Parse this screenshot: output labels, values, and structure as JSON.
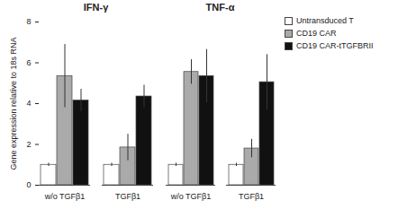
{
  "chart_data": [
    {
      "type": "bar",
      "title": "IFN-γ",
      "ylabel": "Gene expression relative to 18s RNA",
      "categories": [
        "w/o TGFβ1",
        "TGFβ1"
      ],
      "series": [
        {
          "name": "Untransduced T",
          "color": "#ffffff",
          "values": [
            1.0,
            1.0
          ],
          "errors": [
            0.08,
            0.08
          ]
        },
        {
          "name": "CD19 CAR",
          "color": "#aaaaaa",
          "values": [
            5.35,
            1.85
          ],
          "errors": [
            1.55,
            0.65
          ]
        },
        {
          "name": "CD19 CAR-tTGFBRII",
          "color": "#111111",
          "values": [
            4.15,
            4.35
          ],
          "errors": [
            0.55,
            0.55
          ]
        }
      ],
      "ylim": [
        0,
        8
      ],
      "yticks": [
        0,
        2,
        4,
        6,
        8
      ]
    },
    {
      "type": "bar",
      "title": "TNF-α",
      "categories": [
        "w/o TGFβ1",
        "TGFβ1"
      ],
      "series": [
        {
          "name": "Untransduced T",
          "color": "#ffffff",
          "values": [
            1.0,
            1.0
          ],
          "errors": [
            0.08,
            0.08
          ]
        },
        {
          "name": "CD19 CAR",
          "color": "#aaaaaa",
          "values": [
            5.55,
            1.8
          ],
          "errors": [
            0.6,
            0.45
          ]
        },
        {
          "name": "CD19 CAR-tTGFBRII",
          "color": "#111111",
          "values": [
            5.35,
            5.05
          ],
          "errors": [
            1.3,
            1.35
          ]
        }
      ],
      "ylim": [
        0,
        8
      ],
      "yticks": [
        0,
        2,
        4,
        6,
        8
      ],
      "tick_labels": "x",
      "legend": "upper right"
    }
  ]
}
